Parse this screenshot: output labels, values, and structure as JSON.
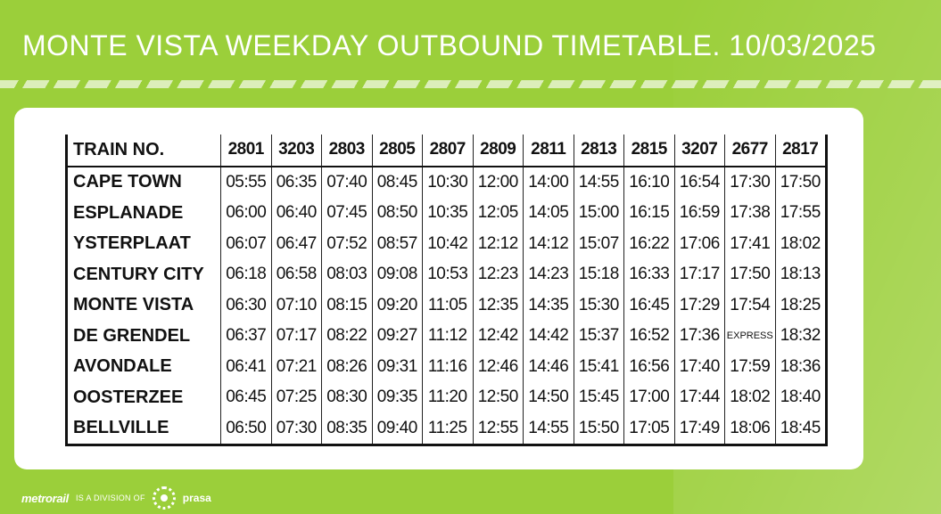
{
  "header": {
    "title": "MONTE VISTA WEEKDAY OUTBOUND TIMETABLE. 10/03/2025"
  },
  "timetable": {
    "corner_label": "TRAIN NO.",
    "trains": [
      "2801",
      "3203",
      "2803",
      "2805",
      "2807",
      "2809",
      "2811",
      "2813",
      "2815",
      "3207",
      "2677",
      "2817"
    ],
    "rows": [
      {
        "station": "CAPE TOWN",
        "times": [
          "05:55",
          "06:35",
          "07:40",
          "08:45",
          "10:30",
          "12:00",
          "14:00",
          "14:55",
          "16:10",
          "16:54",
          "17:30",
          "17:50"
        ]
      },
      {
        "station": "ESPLANADE",
        "times": [
          "06:00",
          "06:40",
          "07:45",
          "08:50",
          "10:35",
          "12:05",
          "14:05",
          "15:00",
          "16:15",
          "16:59",
          "17:38",
          "17:55"
        ]
      },
      {
        "station": "YSTERPLAAT",
        "times": [
          "06:07",
          "06:47",
          "07:52",
          "08:57",
          "10:42",
          "12:12",
          "14:12",
          "15:07",
          "16:22",
          "17:06",
          "17:41",
          "18:02"
        ]
      },
      {
        "station": "CENTURY CITY",
        "times": [
          "06:18",
          "06:58",
          "08:03",
          "09:08",
          "10:53",
          "12:23",
          "14:23",
          "15:18",
          "16:33",
          "17:17",
          "17:50",
          "18:13"
        ]
      },
      {
        "station": "MONTE VISTA",
        "times": [
          "06:30",
          "07:10",
          "08:15",
          "09:20",
          "11:05",
          "12:35",
          "14:35",
          "15:30",
          "16:45",
          "17:29",
          "17:54",
          "18:25"
        ]
      },
      {
        "station": "DE GRENDEL",
        "times": [
          "06:37",
          "07:17",
          "08:22",
          "09:27",
          "11:12",
          "12:42",
          "14:42",
          "15:37",
          "16:52",
          "17:36",
          "EXPRESS",
          "18:32"
        ]
      },
      {
        "station": "AVONDALE",
        "times": [
          "06:41",
          "07:21",
          "08:26",
          "09:31",
          "11:16",
          "12:46",
          "14:46",
          "15:41",
          "16:56",
          "17:40",
          "17:59",
          "18:36"
        ]
      },
      {
        "station": "OOSTERZEE",
        "times": [
          "06:45",
          "07:25",
          "08:30",
          "09:35",
          "11:20",
          "12:50",
          "14:50",
          "15:45",
          "17:00",
          "17:44",
          "18:02",
          "18:40"
        ]
      },
      {
        "station": "BELLVILLE",
        "times": [
          "06:50",
          "07:30",
          "08:35",
          "09:40",
          "11:25",
          "12:55",
          "14:55",
          "15:50",
          "17:05",
          "17:49",
          "18:06",
          "18:45"
        ]
      }
    ]
  },
  "footer": {
    "brand": "metrorail",
    "division_text": "IS A DIVISION OF",
    "parent_brand": "prasa",
    "parent_icon": "prasa-dotted-circle-icon"
  },
  "colors": {
    "background": "#9bcf3a",
    "card": "#ffffff",
    "text": "#111111"
  }
}
